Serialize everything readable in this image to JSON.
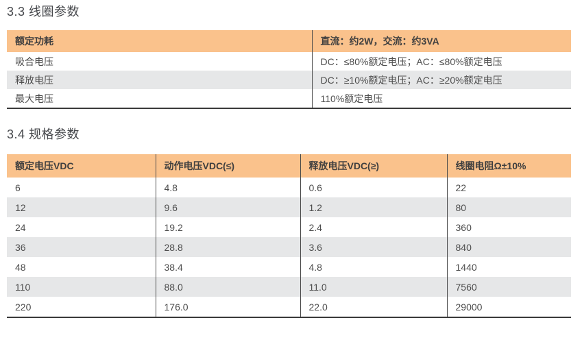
{
  "colors": {
    "header_bg": "#FAC28C",
    "alt_row_bg": "#E6E7E8",
    "table_line": "#4A4A4A",
    "table_bottom_border": "#393939",
    "body_text": "#4D4D4D",
    "header_text": "#3F3F3F",
    "title_text": "#45474B",
    "page_bg": "#FFFFFF"
  },
  "section_coil": {
    "title": "3.3 线圈参数",
    "header": [
      "额定功耗",
      "直流：约2W，交流：约3VA"
    ],
    "rows": [
      [
        "吸合电压",
        "DC：≤80%额定电压；AC：≤80%额定电压"
      ],
      [
        "释放电压",
        "DC：≥10%额定电压；AC：≥20%额定电压"
      ],
      [
        "最大电压",
        "110%额定电压"
      ]
    ]
  },
  "section_spec": {
    "title": "3.4 规格参数",
    "header": [
      "额定电压VDC",
      "动作电压VDC(≤)",
      "释放电压VDC(≥)",
      "线圈电阻Ω±10%"
    ],
    "rows": [
      [
        "6",
        "4.8",
        "0.6",
        "22"
      ],
      [
        "12",
        "9.6",
        "1.2",
        "80"
      ],
      [
        "24",
        "19.2",
        "2.4",
        "360"
      ],
      [
        "36",
        "28.8",
        "3.6",
        "840"
      ],
      [
        "48",
        "38.4",
        "4.8",
        "1440"
      ],
      [
        "110",
        "88.0",
        "11.0",
        "7560"
      ],
      [
        "220",
        "176.0",
        "22.0",
        "29000"
      ]
    ]
  }
}
